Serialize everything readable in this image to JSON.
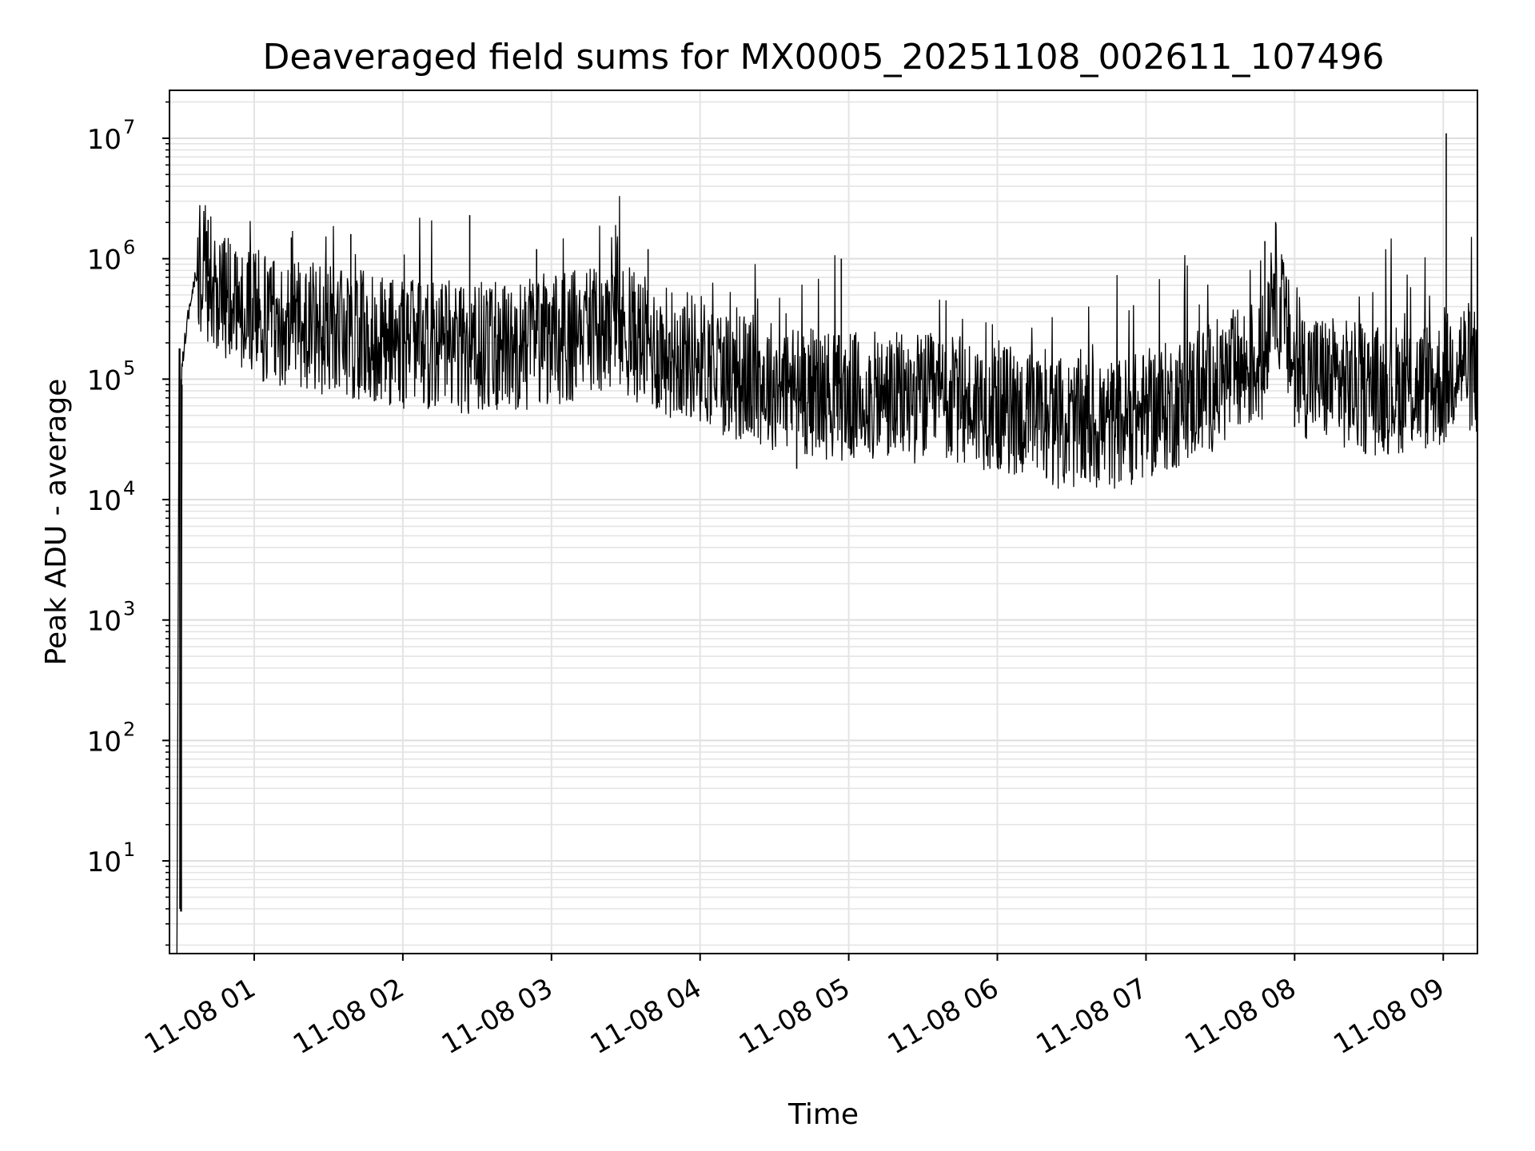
{
  "chart_data": {
    "type": "line",
    "title": "Deaveraged field sums for MX0005_20251108_002611_107496",
    "xlabel": "Time",
    "ylabel": "Peak ADU - average",
    "yscale": "log",
    "ylim": [
      1.7,
      25000000
    ],
    "xlim_hours": [
      0.43,
      9.23
    ],
    "x_tick_labels": [
      "11-08 01",
      "11-08 02",
      "11-08 03",
      "11-08 04",
      "11-08 05",
      "11-08 06",
      "11-08 07",
      "11-08 08",
      "11-08 09"
    ],
    "x_tick_hours": [
      1,
      2,
      3,
      4,
      5,
      6,
      7,
      8,
      9
    ],
    "y_ticks": [
      {
        "value": 10,
        "base": "10",
        "exp": "1"
      },
      {
        "value": 100,
        "base": "10",
        "exp": "2"
      },
      {
        "value": 1000,
        "base": "10",
        "exp": "3"
      },
      {
        "value": 10000,
        "base": "10",
        "exp": "4"
      },
      {
        "value": 100000,
        "base": "10",
        "exp": "5"
      },
      {
        "value": 1000000,
        "base": "10",
        "exp": "6"
      },
      {
        "value": 10000000,
        "base": "10",
        "exp": "7"
      }
    ],
    "grid": true,
    "series": [
      {
        "name": "Peak ADU - average",
        "color": "#000000",
        "baseline": {
          "x_hours": [
            0.48,
            0.5,
            0.51,
            0.52,
            0.55,
            0.6,
            0.65,
            0.75,
            1.0,
            1.3,
            1.5,
            2.0,
            2.5,
            3.0,
            3.3,
            3.5,
            3.7,
            4.0,
            4.2,
            4.5,
            5.0,
            5.5,
            6.0,
            6.3,
            6.7,
            7.0,
            7.3,
            7.6,
            7.8,
            7.85,
            7.9,
            8.0,
            8.2,
            8.5,
            9.0,
            9.1,
            9.23
          ],
          "y_values": [
            1.7,
            4,
            100000,
            150000,
            300000,
            700000,
            900000,
            500000,
            350000,
            280000,
            250000,
            200000,
            180000,
            200000,
            260000,
            250000,
            180000,
            150000,
            110000,
            90000,
            70000,
            70000,
            60000,
            45000,
            40000,
            50000,
            70000,
            110000,
            150000,
            800000,
            400000,
            120000,
            100000,
            80000,
            90000,
            150000,
            110000
          ]
        },
        "spikes": [
          {
            "x_hour": 0.5,
            "y": 180000
          },
          {
            "x_hour": 0.51,
            "y": 3.8
          },
          {
            "x_hour": 0.69,
            "y": 2100000
          },
          {
            "x_hour": 1.25,
            "y": 1500000
          },
          {
            "x_hour": 1.65,
            "y": 1600000
          },
          {
            "x_hour": 2.45,
            "y": 2300000
          },
          {
            "x_hour": 2.9,
            "y": 1200000
          },
          {
            "x_hour": 3.65,
            "y": 1200000
          },
          {
            "x_hour": 4.65,
            "y": 18000
          },
          {
            "x_hour": 4.95,
            "y": 1000000
          },
          {
            "x_hour": 6.33,
            "y": 15000
          },
          {
            "x_hour": 7.8,
            "y": 1400000
          },
          {
            "x_hour": 8.0,
            "y": 40000
          },
          {
            "x_hour": 9.02,
            "y": 11000000
          }
        ]
      }
    ]
  }
}
